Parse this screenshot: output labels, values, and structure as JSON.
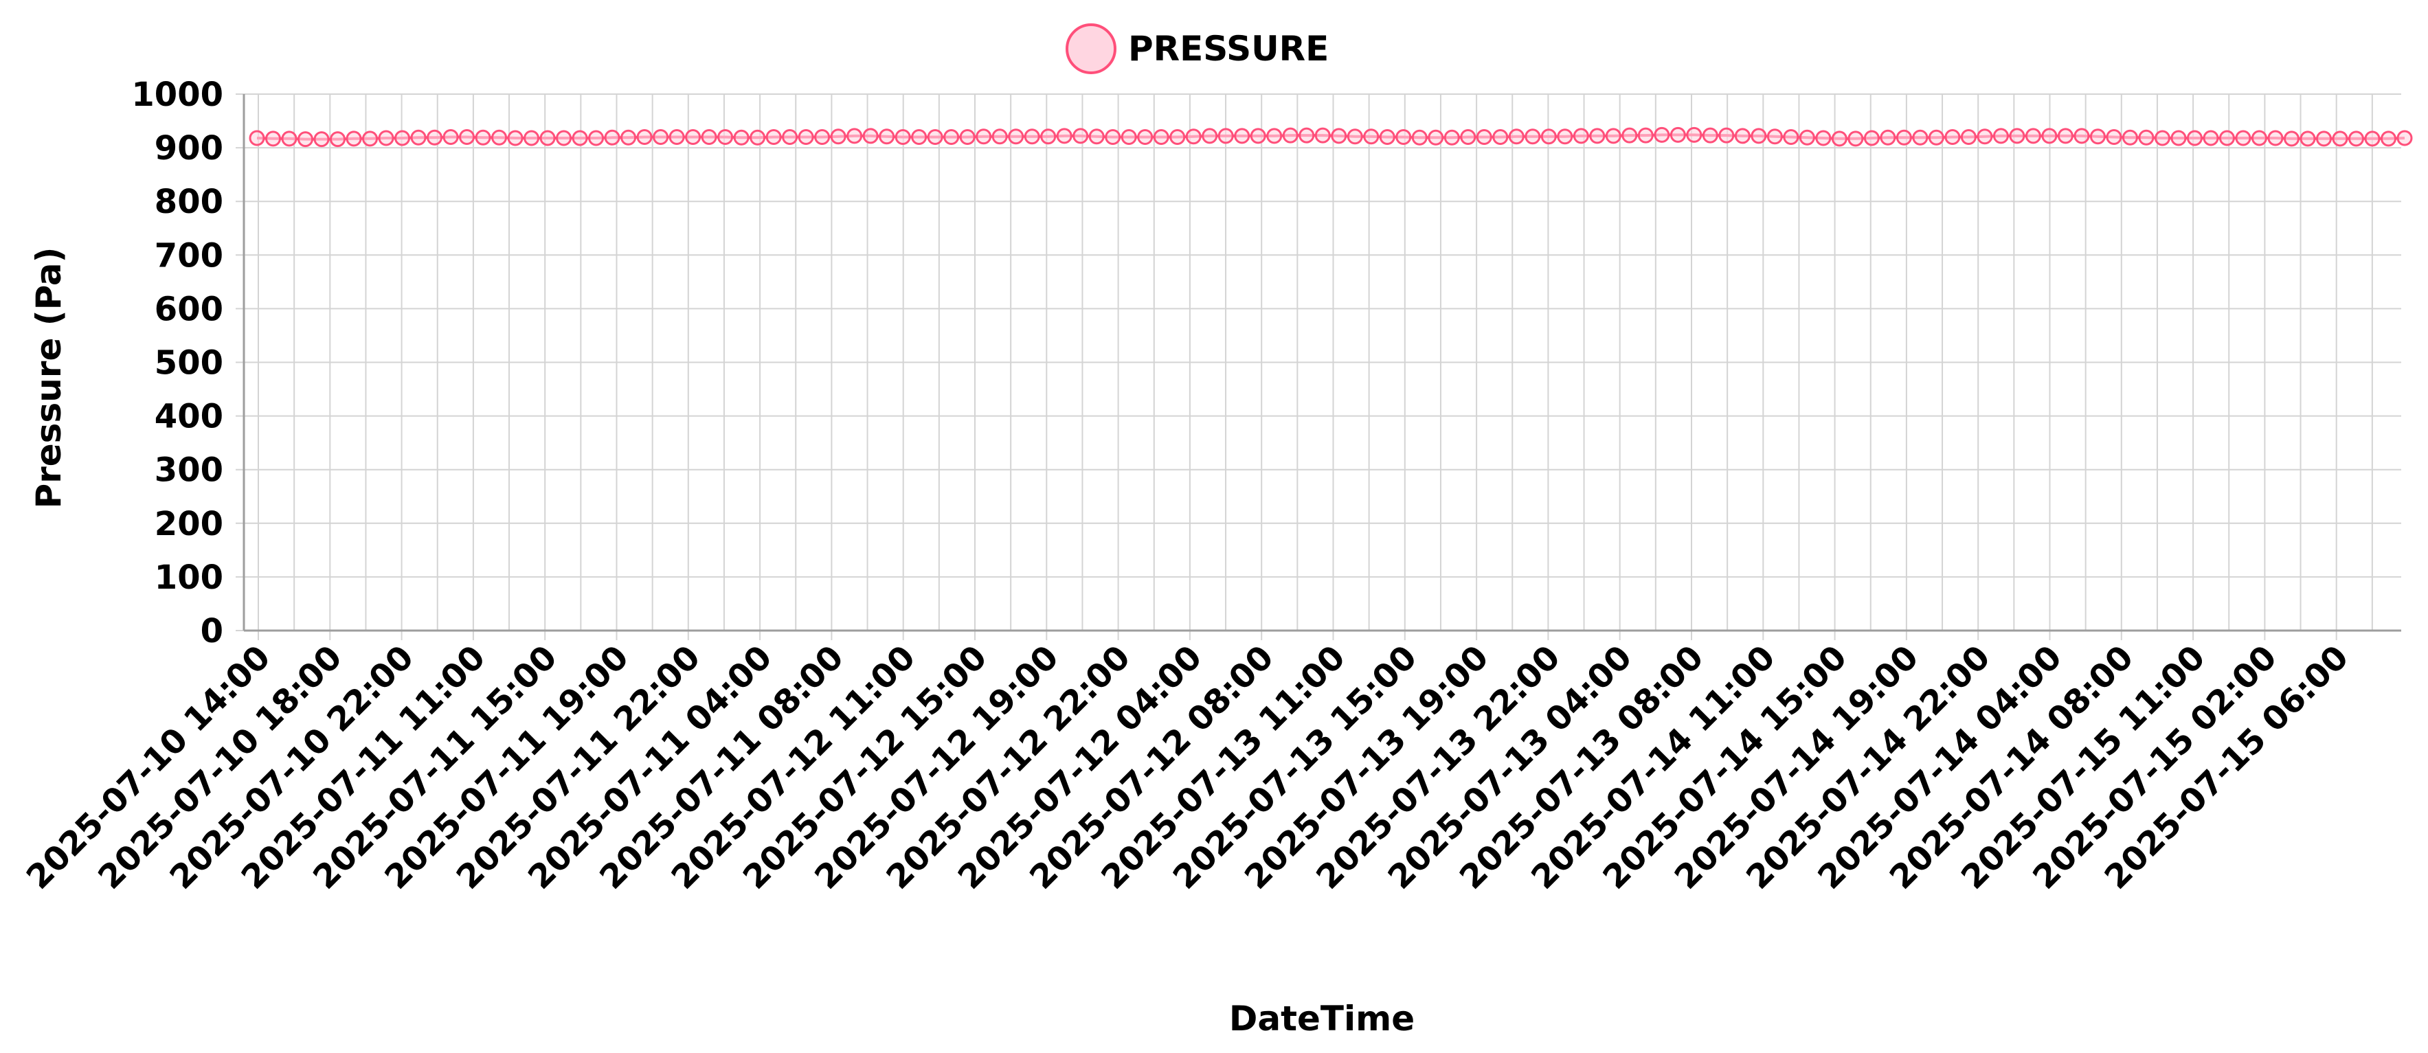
{
  "legend": {
    "label": "PRESSURE",
    "position": "top-center"
  },
  "colors": {
    "series_stroke": "#ff4f7a",
    "series_fill": "#ffd6e1",
    "grid": "#d4d4d4",
    "axis": "#9e9e9e"
  },
  "chart_data": {
    "type": "line",
    "xlabel": "DateTime",
    "ylabel": "Pressure (Pa)",
    "ylim": [
      0,
      1000
    ],
    "yticks": [
      0,
      100,
      200,
      300,
      400,
      500,
      600,
      700,
      800,
      900,
      1000
    ],
    "grid": true,
    "x_tick_labels": [
      "2025-07-10 14:00",
      "2025-07-10 18:00",
      "2025-07-10 22:00",
      "2025-07-11 11:00",
      "2025-07-11 15:00",
      "2025-07-11 19:00",
      "2025-07-11 22:00",
      "2025-07-11 04:00",
      "2025-07-11 08:00",
      "2025-07-12 11:00",
      "2025-07-12 15:00",
      "2025-07-12 19:00",
      "2025-07-12 22:00",
      "2025-07-12 04:00",
      "2025-07-12 08:00",
      "2025-07-13 11:00",
      "2025-07-13 15:00",
      "2025-07-13 19:00",
      "2025-07-13 22:00",
      "2025-07-13 04:00",
      "2025-07-13 08:00",
      "2025-07-14 11:00",
      "2025-07-14 15:00",
      "2025-07-14 19:00",
      "2025-07-14 22:00",
      "2025-07-14 04:00",
      "2025-07-14 08:00",
      "2025-07-15 11:00",
      "2025-07-15 02:00",
      "2025-07-15 06:00"
    ],
    "series": [
      {
        "name": "PRESSURE",
        "values": [
          918,
          917,
          917,
          916,
          916,
          916,
          917,
          917,
          918,
          918,
          919,
          919,
          920,
          920,
          919,
          919,
          918,
          918,
          918,
          918,
          918,
          918,
          919,
          919,
          920,
          920,
          920,
          920,
          920,
          920,
          919,
          919,
          920,
          920,
          920,
          920,
          921,
          922,
          922,
          921,
          920,
          920,
          920,
          920,
          920,
          921,
          921,
          921,
          921,
          921,
          922,
          922,
          921,
          920,
          920,
          920,
          920,
          920,
          921,
          922,
          922,
          922,
          922,
          922,
          923,
          923,
          923,
          922,
          921,
          921,
          920,
          920,
          919,
          919,
          919,
          920,
          920,
          920,
          921,
          921,
          921,
          921,
          922,
          922,
          922,
          923,
          923,
          924,
          924,
          924,
          923,
          923,
          922,
          922,
          921,
          920,
          919,
          918,
          917,
          917,
          918,
          919,
          919,
          919,
          919,
          920,
          920,
          921,
          922,
          922,
          922,
          922,
          922,
          922,
          921,
          920,
          919,
          919,
          918,
          918,
          918,
          918,
          918,
          918,
          918,
          918,
          917,
          917,
          917,
          917,
          917,
          917,
          917,
          918
        ]
      }
    ]
  }
}
